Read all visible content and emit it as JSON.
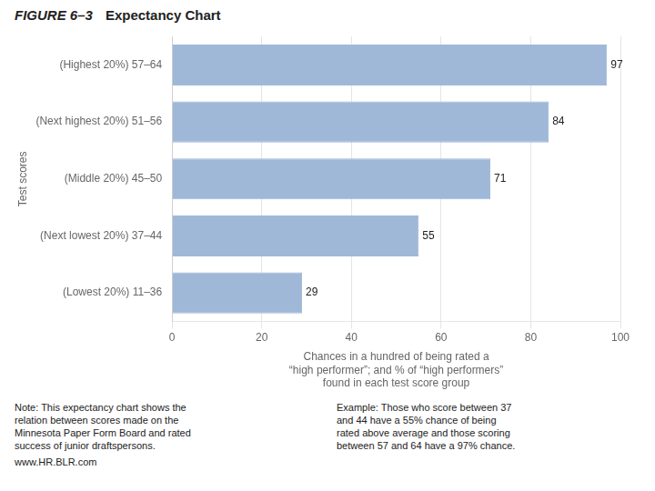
{
  "chart_data": {
    "type": "bar",
    "orientation": "horizontal",
    "title": "Expectancy Chart",
    "xlabel": "Chances in a hundred of being rated a\n“high performer”; and % of “high performers”\nfound in each test score group",
    "ylabel": "Test scores",
    "categories": [
      "(Highest 20%) 57–64",
      "(Next highest 20%) 51–56",
      "(Middle 20%) 45–50",
      "(Next lowest 20%) 37–44",
      "(Lowest 20%) 11–36"
    ],
    "values": [
      97,
      84,
      71,
      55,
      29
    ],
    "color": "#a0b8d8",
    "xlim": [
      0,
      100
    ],
    "xticks": [
      0,
      20,
      40,
      60,
      80,
      100
    ],
    "grid": true,
    "data_labels": true,
    "annotations": [
      "FIGURE 6–3",
      "Note: This expectancy chart shows the\nrelation between scores made on the\nMinnesota Paper Form Board and rated\nsuccess of junior draftspersons.",
      "Example: Those who score between 37\nand 44 have a 55% chance of being\nrated above average and those scoring\nbetween 57 and 64 have a 97% chance.",
      "www.HR.BLR.com"
    ]
  }
}
